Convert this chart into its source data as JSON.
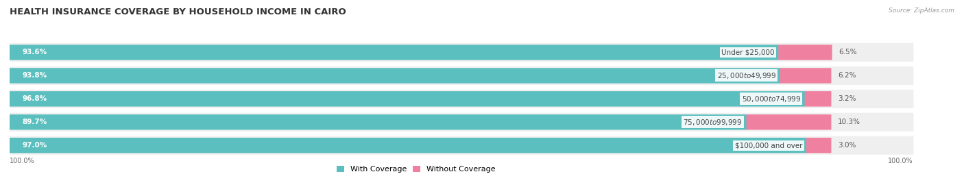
{
  "title": "HEALTH INSURANCE COVERAGE BY HOUSEHOLD INCOME IN CAIRO",
  "source": "Source: ZipAtlas.com",
  "categories": [
    "Under $25,000",
    "$25,000 to $49,999",
    "$50,000 to $74,999",
    "$75,000 to $99,999",
    "$100,000 and over"
  ],
  "with_coverage": [
    93.6,
    93.8,
    96.8,
    89.7,
    97.0
  ],
  "without_coverage": [
    6.5,
    6.2,
    3.2,
    10.3,
    3.0
  ],
  "color_with": "#5BBFBF",
  "color_without": "#F080A0",
  "row_bg": "#EFEFEF",
  "title_fontsize": 9.5,
  "label_fontsize": 7.5,
  "legend_fontsize": 8,
  "bar_height": 0.62,
  "total_width": 100
}
